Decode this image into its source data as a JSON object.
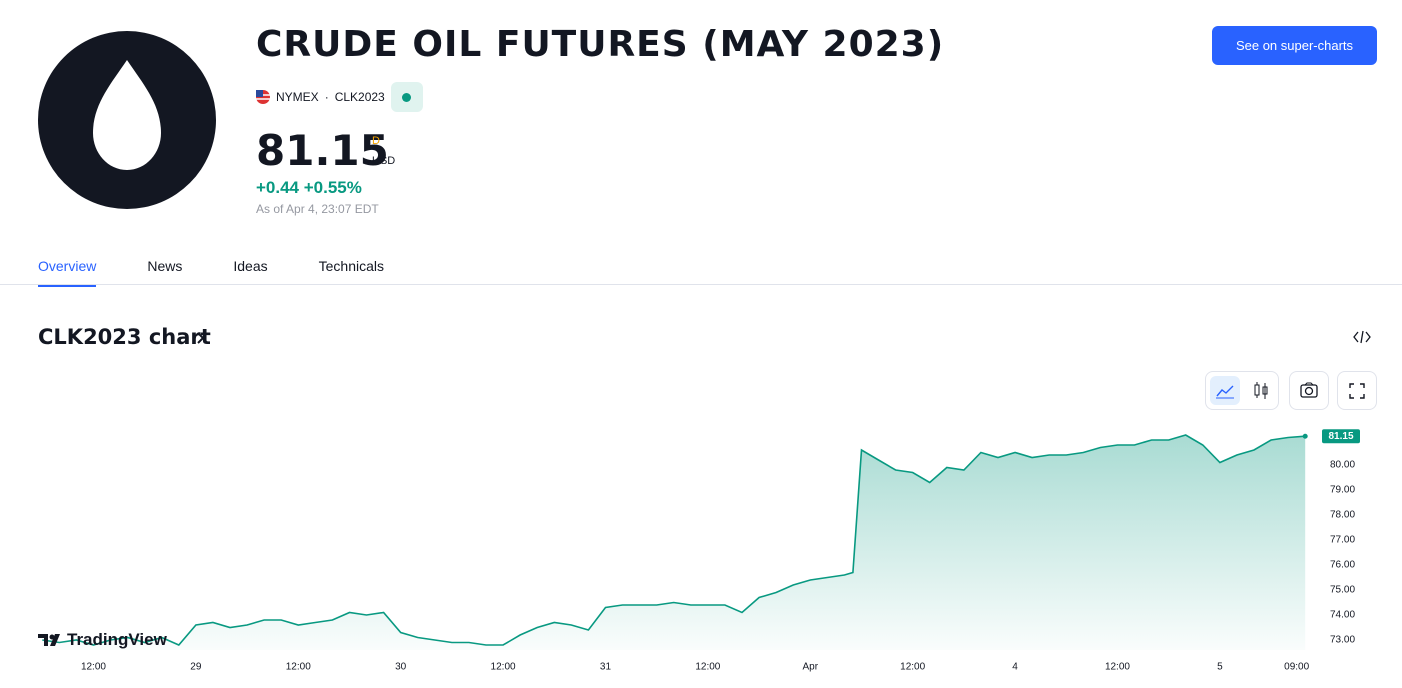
{
  "header": {
    "title": "CRUDE OIL FUTURES (MAY 2023)",
    "exchange": "NYMEX",
    "symbol": "CLK2023",
    "price": 81.15,
    "price_suffix": "D",
    "currency": "USD",
    "change": "+0.44",
    "change_percent": "+0.55%",
    "as_of": "As of Apr 4, 23:07 EDT",
    "button": "See on super-charts"
  },
  "tabs": [
    "Overview",
    "News",
    "Ideas",
    "Technicals"
  ],
  "section_title": "CLK2023 chart",
  "watermark": "TradingView",
  "chart_data": {
    "type": "area",
    "color": "#089981",
    "x": [
      6,
      8,
      10,
      12,
      14,
      16,
      18,
      20,
      22,
      24,
      26,
      28,
      30,
      32,
      34,
      36,
      38,
      40,
      42,
      44,
      46,
      48,
      50,
      52,
      54,
      56,
      58,
      60,
      62,
      64,
      66,
      68,
      70,
      72,
      74,
      76,
      78,
      80,
      82,
      84,
      86,
      88,
      90,
      92,
      94,
      96,
      98,
      100,
      101,
      102,
      104,
      106,
      108,
      110,
      112,
      114,
      116,
      118,
      120,
      122,
      124,
      126,
      128,
      130,
      132,
      134,
      136,
      138,
      140,
      142,
      144,
      146,
      148,
      150,
      152,
      154
    ],
    "values": [
      73.0,
      72.9,
      73.0,
      72.8,
      73.0,
      73.1,
      72.9,
      73.1,
      72.8,
      73.6,
      73.7,
      73.5,
      73.6,
      73.8,
      73.8,
      73.6,
      73.7,
      73.8,
      74.1,
      74.0,
      74.1,
      73.3,
      73.1,
      73.0,
      72.9,
      72.9,
      72.8,
      72.8,
      73.2,
      73.5,
      73.7,
      73.6,
      73.4,
      74.3,
      74.4,
      74.4,
      74.4,
      74.5,
      74.4,
      74.4,
      74.4,
      74.1,
      74.7,
      74.9,
      75.2,
      75.4,
      75.5,
      75.6,
      75.7,
      80.6,
      80.2,
      79.8,
      79.7,
      79.3,
      79.9,
      79.8,
      80.5,
      80.3,
      80.5,
      80.3,
      80.4,
      80.4,
      80.5,
      80.7,
      80.8,
      80.8,
      81.0,
      81.0,
      81.2,
      80.8,
      80.1,
      80.4,
      80.6,
      81.0,
      81.1,
      81.15
    ],
    "last_price": 81.15,
    "xlim": [
      5.5,
      155.5
    ],
    "xticks": [
      {
        "value": 12,
        "label": "12:00"
      },
      {
        "value": 24,
        "label": "29"
      },
      {
        "value": 36,
        "label": "12:00"
      },
      {
        "value": 48,
        "label": "30"
      },
      {
        "value": 60,
        "label": "12:00"
      },
      {
        "value": 72,
        "label": "31"
      },
      {
        "value": 84,
        "label": "12:00"
      },
      {
        "value": 96,
        "label": "Apr"
      },
      {
        "value": 108,
        "label": "12:00"
      },
      {
        "value": 120,
        "label": "4"
      },
      {
        "value": 132,
        "label": "12:00"
      },
      {
        "value": 144,
        "label": "5"
      },
      {
        "value": 153,
        "label": "09:00"
      }
    ],
    "ylim": [
      72.6,
      81.6
    ],
    "yticks": [
      {
        "value": 73,
        "label": "73.00"
      },
      {
        "value": 74,
        "label": "74.00"
      },
      {
        "value": 75,
        "label": "75.00"
      },
      {
        "value": 76,
        "label": "76.00"
      },
      {
        "value": 77,
        "label": "77.00"
      },
      {
        "value": 78,
        "label": "78.00"
      },
      {
        "value": 79,
        "label": "79.00"
      },
      {
        "value": 80,
        "label": "80.00"
      }
    ]
  }
}
